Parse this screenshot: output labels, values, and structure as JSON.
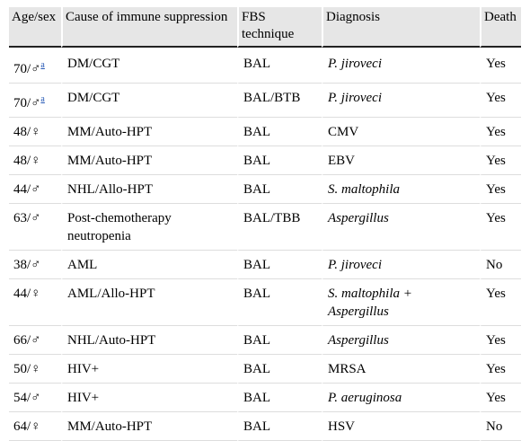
{
  "table": {
    "header": [
      "Age/sex",
      "Cause of immune suppression",
      "FBS technique",
      "Diagnosis",
      "Death"
    ],
    "rows": [
      {
        "age_sex": "70/♂",
        "note": "a",
        "cause": "DM/CGT",
        "fbs": "BAL",
        "diagnosis": "P. jiroveci",
        "diagnosis_italic": true,
        "death": "Yes"
      },
      {
        "age_sex": "70/♂",
        "note": "a",
        "cause": "DM/CGT",
        "fbs": "BAL/BTB",
        "diagnosis": "P. jiroveci",
        "diagnosis_italic": true,
        "death": "Yes"
      },
      {
        "age_sex": "48/♀",
        "cause": "MM/Auto-HPT",
        "fbs": "BAL",
        "diagnosis": "CMV",
        "diagnosis_italic": false,
        "death": "Yes"
      },
      {
        "age_sex": "48/♀",
        "cause": "MM/Auto-HPT",
        "fbs": "BAL",
        "diagnosis": "EBV",
        "diagnosis_italic": false,
        "death": "Yes"
      },
      {
        "age_sex": "44/♂",
        "cause": "NHL/Allo-HPT",
        "fbs": "BAL",
        "diagnosis": "S. maltophila",
        "diagnosis_italic": true,
        "death": "Yes"
      },
      {
        "age_sex": "63/♂",
        "cause": "Post-chemotherapy neutropenia",
        "fbs": "BAL/TBB",
        "diagnosis": "Aspergillus",
        "diagnosis_italic": true,
        "death": "Yes"
      },
      {
        "age_sex": "38/♂",
        "cause": "AML",
        "fbs": "BAL",
        "diagnosis": "P. jiroveci",
        "diagnosis_italic": true,
        "death": "No"
      },
      {
        "age_sex": "44/♀",
        "cause": "AML/Allo-HPT",
        "fbs": "BAL",
        "diagnosis": "S. maltophila + Aspergillus",
        "diagnosis_italic": true,
        "death": "Yes"
      },
      {
        "age_sex": "66/♂",
        "cause": "NHL/Auto-HPT",
        "fbs": "BAL",
        "diagnosis": "Aspergillus",
        "diagnosis_italic": true,
        "death": "Yes"
      },
      {
        "age_sex": "50/♀",
        "cause": "HIV+",
        "fbs": "BAL",
        "diagnosis": "MRSA",
        "diagnosis_italic": false,
        "death": "Yes"
      },
      {
        "age_sex": "54/♂",
        "cause": "HIV+",
        "fbs": "BAL",
        "diagnosis": "P. aeruginosa",
        "diagnosis_italic": true,
        "death": "Yes"
      },
      {
        "age_sex": "64/♀",
        "cause": "MM/Auto-HPT",
        "fbs": "BAL",
        "diagnosis": "HSV",
        "diagnosis_italic": false,
        "death": "No"
      }
    ]
  }
}
